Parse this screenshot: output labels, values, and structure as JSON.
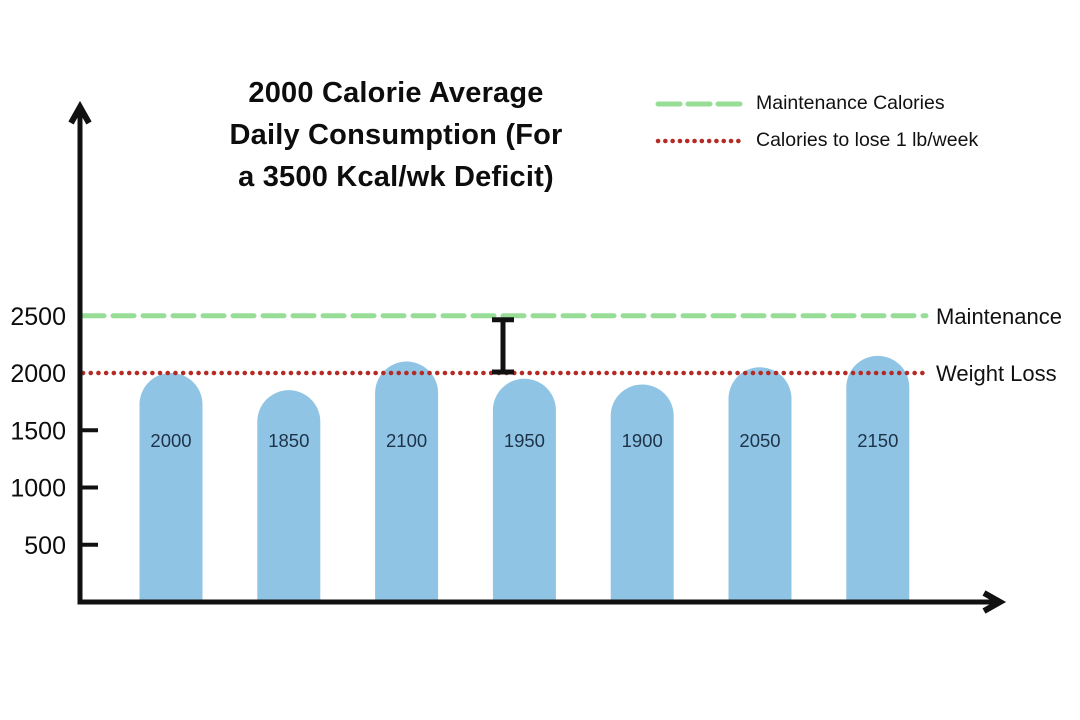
{
  "title_lines": [
    "2000 Calorie Average",
    "Daily Consumption (For",
    "a 3500 Kcal/wk Deficit)"
  ],
  "legend": {
    "items": [
      {
        "label": "Maintenance Calories",
        "style": "dashed",
        "color": "#97dd95"
      },
      {
        "label": "Calories to lose 1 lb/week",
        "style": "dotted",
        "color": "#b42a24"
      }
    ]
  },
  "chart_data": {
    "type": "bar",
    "title": "2000 Calorie Average Daily Consumption (For a 3500 Kcal/wk Deficit)",
    "values": [
      2000,
      1850,
      2100,
      1950,
      1900,
      2050,
      2150
    ],
    "bar_labels": [
      "2000",
      "1850",
      "2100",
      "1950",
      "1900",
      "2050",
      "2150"
    ],
    "bar_color": "#90c4e4",
    "bar_label_color": "#1d3349",
    "yticks": [
      500,
      1000,
      1500,
      2000,
      2500
    ],
    "ylim": [
      0,
      2900
    ],
    "grid": false,
    "xlabel": "",
    "ylabel": "",
    "legend_position": "top-right",
    "reference_lines": [
      {
        "value": 2500,
        "label": "Maintenance",
        "style": "dashed",
        "color": "#97dd95"
      },
      {
        "value": 2000,
        "label": "Weight Loss",
        "style": "dotted",
        "color": "#b42a24"
      }
    ],
    "error_bar_annotation": {
      "from": 2000,
      "to": 2500
    }
  },
  "colors": {
    "axis": "#111111",
    "background": "#ffffff"
  }
}
